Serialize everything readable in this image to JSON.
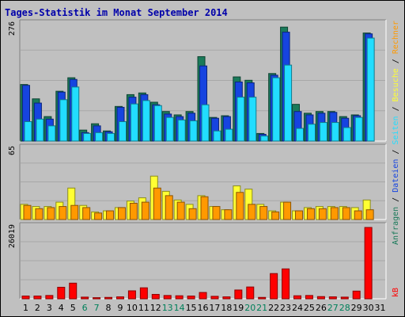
{
  "chart_data": {
    "type": "bar",
    "title": "Tages-Statistik im Monat September 2014",
    "categories": [
      "1",
      "2",
      "3",
      "4",
      "5",
      "6",
      "7",
      "8",
      "9",
      "10",
      "11",
      "12",
      "13",
      "14",
      "15",
      "16",
      "17",
      "18",
      "19",
      "20",
      "21",
      "22",
      "23",
      "24",
      "25",
      "26",
      "27",
      "28",
      "29",
      "30",
      "31"
    ],
    "weekend_days": [
      "6",
      "7",
      "13",
      "14",
      "20",
      "21",
      "27",
      "28"
    ],
    "panels": [
      {
        "name": "hits-files-visits",
        "ymax_label": "276",
        "ylim": [
          0,
          276
        ],
        "series": [
          {
            "name": "Anfragen",
            "color": "#1a7a5a",
            "values": [
              134,
              100,
              58,
              118,
              150,
              26,
              41,
              24,
              82,
              110,
              114,
              92,
              70,
              62,
              70,
              200,
              56,
              60,
              152,
              144,
              18,
              160,
              270,
              87,
              66,
              70,
              70,
              58,
              62,
              256
            ]
          },
          {
            "name": "Dateien",
            "color": "#1644e0",
            "values": [
              132,
              90,
              52,
              116,
              146,
              20,
              36,
              22,
              80,
              104,
              110,
              86,
              64,
              58,
              66,
              178,
              54,
              58,
              140,
              138,
              16,
              156,
              258,
              70,
              62,
              66,
              68,
              54,
              60,
              254
            ]
          },
          {
            "name": "Seiten",
            "color": "#22ddff",
            "values": [
              46,
              52,
              36,
              98,
              128,
              18,
              20,
              18,
              46,
              88,
              96,
              84,
              56,
              50,
              48,
              86,
              24,
              28,
              104,
              104,
              12,
              150,
              180,
              30,
              40,
              44,
              44,
              32,
              56,
              244
            ]
          }
        ]
      },
      {
        "name": "visits-sites",
        "ymax_label": "65",
        "ylim": [
          0,
          65
        ],
        "series": [
          {
            "name": "Besuche",
            "color": "#ffff33",
            "values": [
              14,
              12,
              12,
              16,
              29,
              13,
              7,
              8,
              11,
              17,
              20,
              40,
              26,
              18,
              14,
              22,
              12,
              9,
              31,
              28,
              14,
              8,
              16,
              8,
              11,
              12,
              12,
              12,
              11,
              18
            ]
          },
          {
            "name": "Rechner",
            "color": "#ff9900",
            "values": [
              13,
              10,
              11,
              12,
              13,
              11,
              6,
              8,
              11,
              15,
              16,
              29,
              22,
              16,
              10,
              21,
              12,
              9,
              25,
              14,
              12,
              7,
              16,
              8,
              10,
              10,
              11,
              11,
              8,
              9
            ]
          }
        ]
      },
      {
        "name": "kb",
        "ymax_label": "26019",
        "ylim": [
          0,
          26019
        ],
        "series": [
          {
            "name": "kB",
            "color": "#ff0000",
            "values": [
              1000,
              1000,
              1200,
              4200,
              5700,
              600,
              400,
              500,
              700,
              2900,
              4000,
              1600,
              1200,
              1100,
              1000,
              2300,
              900,
              700,
              3200,
              4300,
              500,
              9200,
              10900,
              1100,
              1200,
              800,
              700,
              600,
              2800,
              26019
            ]
          }
        ]
      }
    ],
    "legend": [
      "Anfragen",
      "/",
      "Dateien",
      "/",
      "Seiten",
      "/",
      "Besuche",
      "/",
      "Rechner"
    ],
    "kb_label": "kB",
    "grid": true,
    "legend_placement": "right"
  },
  "colors": {
    "background": "#c0c0c0",
    "panel": "#c0c0c0",
    "title": "#0000aa",
    "weekday": "#000000",
    "weekend": "#00805a"
  }
}
